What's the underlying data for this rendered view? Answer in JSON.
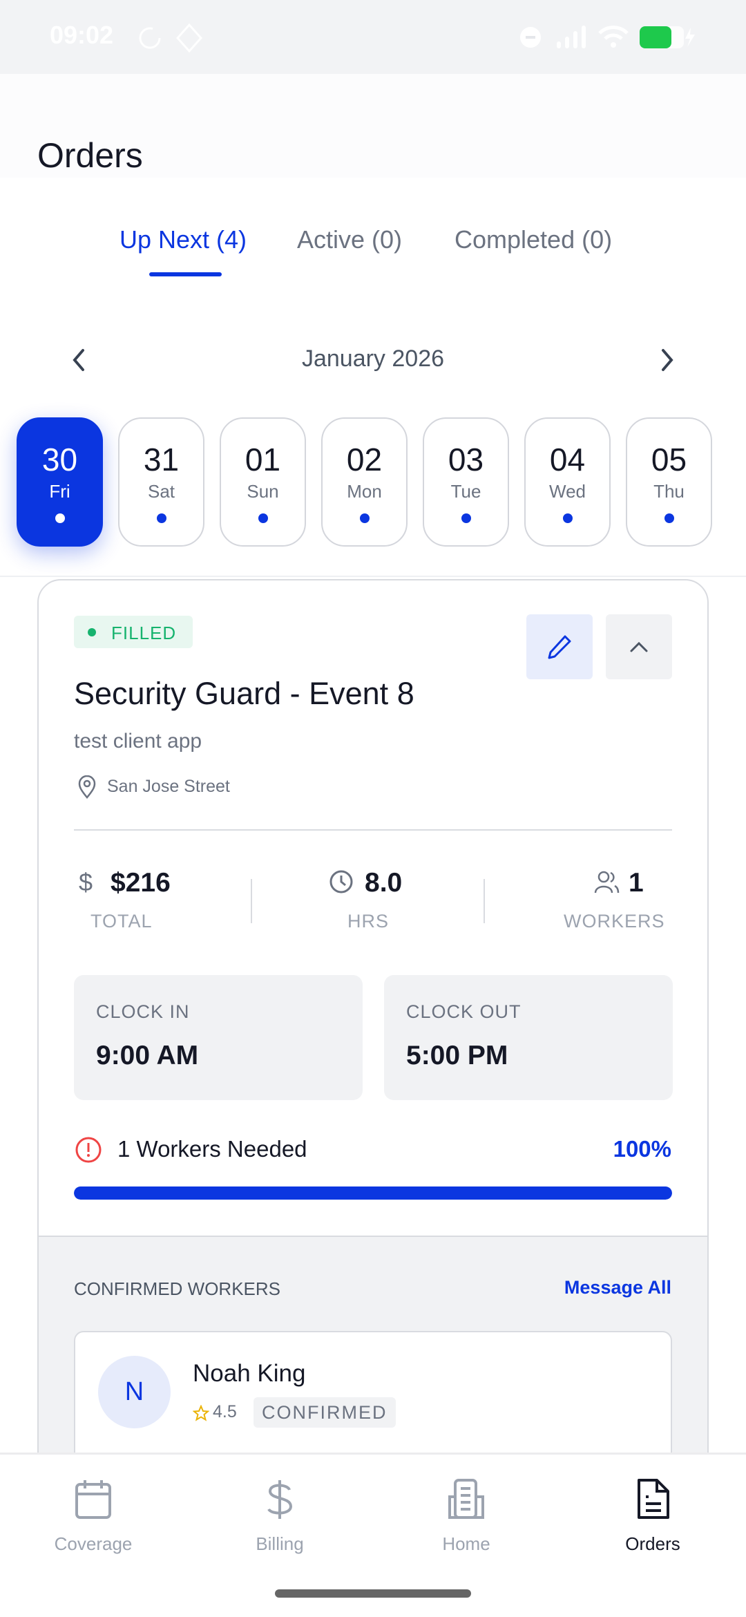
{
  "status_bar": {
    "time": "09:02",
    "battery_color": "#1ec94c"
  },
  "header": {
    "title": "Orders"
  },
  "tabs": [
    {
      "label": "Up Next (4)",
      "active": true
    },
    {
      "label": "Active (0)"
    },
    {
      "label": "Completed (0)"
    }
  ],
  "calendar": {
    "month": "January 2026",
    "days": [
      {
        "num": "30",
        "day": "Fri",
        "selected": true
      },
      {
        "num": "31",
        "day": "Sat"
      },
      {
        "num": "01",
        "day": "Sun"
      },
      {
        "num": "02",
        "day": "Mon"
      },
      {
        "num": "03",
        "day": "Tue"
      },
      {
        "num": "04",
        "day": "Wed"
      },
      {
        "num": "05",
        "day": "Thu"
      }
    ]
  },
  "order": {
    "status": "FILLED",
    "status_color": "#16b36e",
    "title": "Security Guard - Event 8",
    "client": "test client app",
    "location": "San Jose Street",
    "stats": {
      "total_value": "$216",
      "total_label": "TOTAL",
      "hours_value": "8.0",
      "hours_label": "HRS",
      "workers_value": "1",
      "workers_label": "WORKERS"
    },
    "clock_in": {
      "label": "CLOCK IN",
      "value": "9:00 AM"
    },
    "clock_out": {
      "label": "CLOCK OUT",
      "value": "5:00 PM"
    },
    "needed": "1 Workers Needed",
    "progress": "100%",
    "progress_fraction": 1.0,
    "confirmed_header": "CONFIRMED WORKERS",
    "message_all": "Message All",
    "workers": [
      {
        "initial": "N",
        "name": "Noah King",
        "rating": "4.5",
        "status": "CONFIRMED"
      }
    ]
  },
  "nav": [
    {
      "label": "Coverage",
      "icon": "calendar-icon"
    },
    {
      "label": "Billing",
      "icon": "dollar-icon"
    },
    {
      "label": "Home",
      "icon": "building-icon"
    },
    {
      "label": "Orders",
      "icon": "document-icon",
      "active": true
    }
  ],
  "accent": "#0b36e0"
}
